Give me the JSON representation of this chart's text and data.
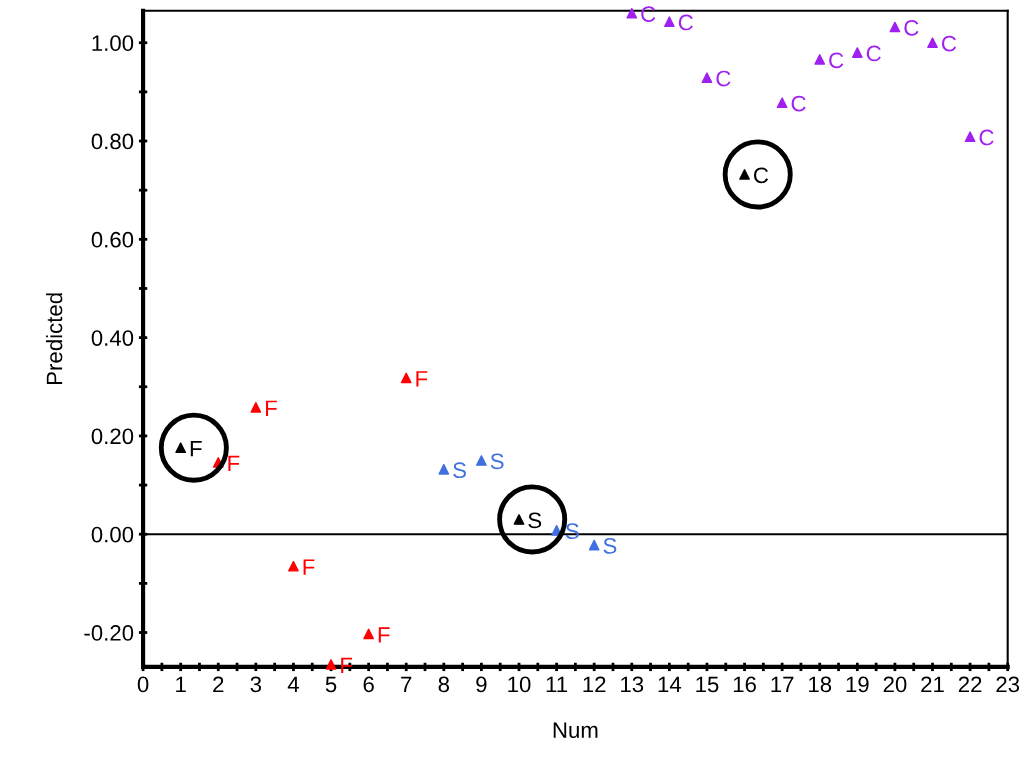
{
  "chart_data": {
    "type": "scatter",
    "xlabel": "Num",
    "ylabel": "Predicted",
    "marker": "triangle",
    "grid": false,
    "legend": false,
    "xlim": [
      0,
      23
    ],
    "ylim": [
      -0.27,
      1.065
    ],
    "xticks": [
      0,
      {
        "value": 0.5,
        "label": null
      },
      1,
      {
        "value": 1.5,
        "label": null
      },
      2,
      {
        "value": 2.5,
        "label": null
      },
      3,
      {
        "value": 3.5,
        "label": null
      },
      4,
      {
        "value": 4.5,
        "label": null
      },
      5,
      {
        "value": 5.5,
        "label": null
      },
      6,
      {
        "value": 6.5,
        "label": null
      },
      7,
      {
        "value": 7.5,
        "label": null
      },
      8,
      {
        "value": 8.5,
        "label": null
      },
      9,
      {
        "value": 9.5,
        "label": null
      },
      10,
      {
        "value": 10.5,
        "label": null
      },
      11,
      {
        "value": 11.5,
        "label": null
      },
      12,
      {
        "value": 12.5,
        "label": null
      },
      13,
      {
        "value": 13.5,
        "label": null
      },
      14,
      {
        "value": 14.5,
        "label": null
      },
      15,
      {
        "value": 15.5,
        "label": null
      },
      16,
      {
        "value": 16.5,
        "label": null
      },
      17,
      {
        "value": 17.5,
        "label": null
      },
      18,
      {
        "value": 18.5,
        "label": null
      },
      19,
      {
        "value": 19.5,
        "label": null
      },
      20,
      {
        "value": 20.5,
        "label": null
      },
      21,
      {
        "value": 21.5,
        "label": null
      },
      22,
      {
        "value": 22.5,
        "label": null
      },
      23
    ],
    "yticks": [
      {
        "value": -0.2,
        "label": "-0.20"
      },
      {
        "value": -0.1,
        "label": null
      },
      {
        "value": 0,
        "label": "0.00"
      },
      {
        "value": 0.1,
        "label": null
      },
      {
        "value": 0.2,
        "label": "0.20"
      },
      {
        "value": 0.3,
        "label": null
      },
      {
        "value": 0.4,
        "label": "0.40"
      },
      {
        "value": 0.5,
        "label": null
      },
      {
        "value": 0.6,
        "label": "0.60"
      },
      {
        "value": 0.7,
        "label": null
      },
      {
        "value": 0.8,
        "label": "0.80"
      },
      {
        "value": 0.9,
        "label": null
      },
      {
        "value": 1.0,
        "label": "1.00"
      }
    ],
    "ref_lines": [
      {
        "axis": "y",
        "value": 0,
        "color": "#000000",
        "line_style": "solid"
      }
    ],
    "series": [
      {
        "color": "#ff0000",
        "x": [
          2,
          3,
          4,
          5,
          6,
          7
        ],
        "values": [
          0.146,
          0.258,
          -0.065,
          -0.265,
          -0.203,
          0.318
        ],
        "value_labels": [
          "F",
          "F",
          "F",
          "F",
          "F",
          "F"
        ]
      },
      {
        "color": "#4070e0",
        "x": [
          8,
          9,
          11,
          12
        ],
        "values": [
          0.132,
          0.15,
          0.008,
          -0.022
        ],
        "value_labels": [
          "S",
          "S",
          "S",
          "S"
        ]
      },
      {
        "color": "#a020f0",
        "x": [
          13,
          14,
          15,
          17,
          18,
          19,
          20,
          21,
          22
        ],
        "values": [
          1.06,
          1.043,
          0.929,
          0.878,
          0.966,
          0.98,
          1.032,
          1.0,
          0.809
        ],
        "value_labels": [
          "C",
          "C",
          "C",
          "C",
          "C",
          "C",
          "C",
          "C",
          "C"
        ]
      },
      {
        "color": "#000000",
        "x": [
          1,
          10,
          16
        ],
        "values": [
          0.176,
          0.03,
          0.732
        ],
        "value_labels": [
          "F",
          "S",
          "C"
        ]
      }
    ]
  }
}
